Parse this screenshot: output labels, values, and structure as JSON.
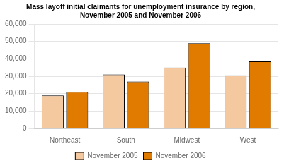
{
  "chart_data": {
    "type": "bar",
    "title": "Mass layoff initial claimants for unemployment insurance by region,\nNovember 2005 and November 2006",
    "categories": [
      "Northeast",
      "South",
      "Midwest",
      "West"
    ],
    "series": [
      {
        "name": "November 2005",
        "color": "#F5C9A0",
        "values": [
          19000,
          31000,
          35000,
          30500
        ]
      },
      {
        "name": "November 2006",
        "color": "#E07B00",
        "values": [
          21000,
          27000,
          49000,
          38500
        ]
      }
    ],
    "ylim": [
      0,
      60000
    ],
    "yticks": [
      0,
      {
        "value": 10000,
        "label": "10,000"
      },
      {
        "value": 20000,
        "label": "20,000"
      },
      {
        "value": 30000,
        "label": "30,000"
      },
      {
        "value": 40000,
        "label": "40,000"
      },
      {
        "value": 50000,
        "label": "50,000"
      },
      {
        "value": 60000,
        "label": "60,000"
      }
    ],
    "grid": true,
    "legend": "bottom"
  }
}
